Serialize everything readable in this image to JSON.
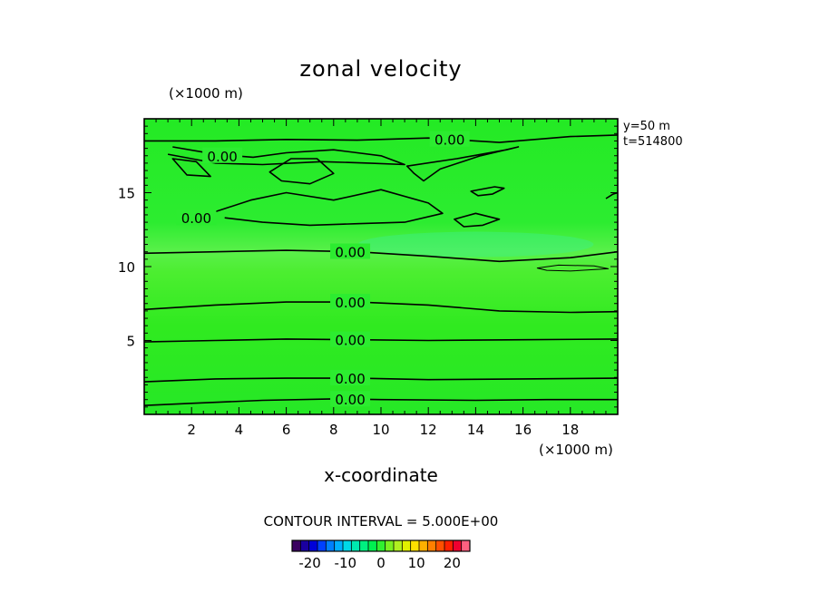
{
  "chart_data": {
    "type": "contour",
    "title": "zonal velocity",
    "xlabel": "x-coordinate",
    "x_unit": "(×1000 m)",
    "y_unit": "(×1000 m)",
    "xlim": [
      0,
      20
    ],
    "ylim": [
      0,
      20
    ],
    "x_ticks": [
      2,
      4,
      6,
      8,
      10,
      12,
      14,
      16,
      18
    ],
    "y_ticks": [
      5,
      10,
      15
    ],
    "info": [
      "y=50 m",
      "t=514800"
    ],
    "contour_interval_text": "CONTOUR INTERVAL = 5.000E+00",
    "contour_label": "0.00",
    "contour_levels": [
      0
    ],
    "colorbar": {
      "range": [
        -25,
        25
      ],
      "tick_labels": [
        "-20",
        "-10",
        "0",
        "10",
        "20"
      ],
      "tick_values": [
        -20,
        -10,
        0,
        10,
        20
      ],
      "colors": [
        "#3a0060",
        "#1a00a0",
        "#0000d8",
        "#0040ff",
        "#0080ff",
        "#00b0ff",
        "#00d8e8",
        "#00e8b0",
        "#00f080",
        "#00f050",
        "#30f030",
        "#7af020",
        "#b0f020",
        "#e0f000",
        "#ffe000",
        "#ffb000",
        "#ff8000",
        "#ff5000",
        "#ff2000",
        "#f00030",
        "#ff6080"
      ]
    },
    "field_color": "#28ec28",
    "contour_lines": [
      {
        "points": [
          [
            0,
            0.6
          ],
          [
            2,
            0.75
          ],
          [
            5,
            0.95
          ],
          [
            8,
            1.05
          ],
          [
            10,
            1.0
          ],
          [
            14,
            0.95
          ],
          [
            17,
            1.0
          ],
          [
            20,
            1.0
          ]
        ],
        "label_x": 8.7
      },
      {
        "points": [
          [
            0,
            2.2
          ],
          [
            3,
            2.4
          ],
          [
            6,
            2.45
          ],
          [
            9,
            2.45
          ],
          [
            12,
            2.35
          ],
          [
            16,
            2.4
          ],
          [
            20,
            2.45
          ]
        ],
        "label_x": 8.7
      },
      {
        "points": [
          [
            0,
            4.9
          ],
          [
            3,
            5.0
          ],
          [
            6,
            5.1
          ],
          [
            9,
            5.05
          ],
          [
            12,
            5.0
          ],
          [
            16,
            5.05
          ],
          [
            20,
            5.1
          ]
        ],
        "label_x": 8.7
      },
      {
        "points": [
          [
            0,
            7.1
          ],
          [
            3,
            7.4
          ],
          [
            6,
            7.6
          ],
          [
            9,
            7.6
          ],
          [
            12,
            7.4
          ],
          [
            15,
            7.0
          ],
          [
            18,
            6.9
          ],
          [
            20,
            6.95
          ]
        ],
        "label_x": 8.7
      },
      {
        "points": [
          [
            0,
            10.9
          ],
          [
            3,
            11.0
          ],
          [
            6,
            11.1
          ],
          [
            9,
            11.0
          ],
          [
            12,
            10.7
          ],
          [
            15,
            10.35
          ],
          [
            18,
            10.6
          ],
          [
            20,
            11.0
          ]
        ],
        "label_x": 8.7
      },
      {
        "points": [
          [
            0,
            18.5
          ],
          [
            3,
            18.5
          ],
          [
            6,
            18.6
          ],
          [
            9,
            18.55
          ],
          [
            12,
            18.7
          ],
          [
            15,
            18.4
          ],
          [
            18,
            18.8
          ],
          [
            20,
            18.9
          ]
        ],
        "label_x": 12.9
      },
      {
        "points": [
          [
            2.6,
            13.5
          ],
          [
            4.5,
            14.5
          ],
          [
            6,
            15.0
          ],
          [
            8,
            14.5
          ],
          [
            10,
            15.2
          ],
          [
            12,
            14.3
          ],
          [
            12.6,
            13.6
          ],
          [
            11,
            13.0
          ],
          [
            9,
            12.9
          ],
          [
            7,
            12.8
          ],
          [
            5,
            13.0
          ],
          [
            3.4,
            13.3
          ]
        ],
        "label_x": 2.2,
        "label_y": 13.3
      },
      {
        "points": [
          [
            1.2,
            18.1
          ],
          [
            3,
            17.6
          ],
          [
            4.6,
            17.4
          ],
          [
            6,
            17.7
          ],
          [
            8,
            17.9
          ],
          [
            10,
            17.5
          ],
          [
            11,
            16.9
          ],
          [
            9.5,
            17.0
          ],
          [
            7.5,
            17.1
          ],
          [
            5,
            16.9
          ],
          [
            3,
            17.0
          ],
          [
            1,
            17.6
          ]
        ],
        "label_x": 3.3,
        "label_y": 17.5
      },
      {
        "points": [
          [
            5.3,
            16.4
          ],
          [
            6.2,
            17.3
          ],
          [
            7.3,
            17.3
          ],
          [
            8.0,
            16.3
          ],
          [
            7.0,
            15.6
          ],
          [
            5.8,
            15.8
          ]
        ]
      },
      {
        "points": [
          [
            1.2,
            17.3
          ],
          [
            2.2,
            17.1
          ],
          [
            2.8,
            16.1
          ],
          [
            1.8,
            16.2
          ]
        ]
      },
      {
        "points": [
          [
            11.1,
            16.8
          ],
          [
            13.2,
            17.3
          ],
          [
            15.3,
            17.9
          ],
          [
            15.8,
            18.1
          ],
          [
            14.2,
            17.5
          ],
          [
            12.5,
            16.6
          ],
          [
            11.8,
            15.8
          ],
          [
            11.4,
            16.3
          ]
        ]
      },
      {
        "points": [
          [
            13.8,
            15.1
          ],
          [
            14.8,
            15.4
          ],
          [
            15.2,
            15.3
          ],
          [
            14.7,
            14.9
          ],
          [
            14.1,
            14.8
          ]
        ]
      },
      {
        "points": [
          [
            13.1,
            13.2
          ],
          [
            14.0,
            13.6
          ],
          [
            15.0,
            13.2
          ],
          [
            14.3,
            12.8
          ],
          [
            13.5,
            12.7
          ]
        ]
      },
      {
        "points": [
          [
            16.6,
            9.9
          ],
          [
            17.5,
            10.1
          ],
          [
            19.0,
            10.05
          ],
          [
            19.6,
            9.85
          ],
          [
            18.0,
            9.7
          ],
          [
            17.0,
            9.75
          ]
        ],
        "thin": true
      },
      {
        "points": [
          [
            19.5,
            14.6
          ],
          [
            19.8,
            14.9
          ],
          [
            20,
            15.0
          ]
        ]
      }
    ]
  }
}
